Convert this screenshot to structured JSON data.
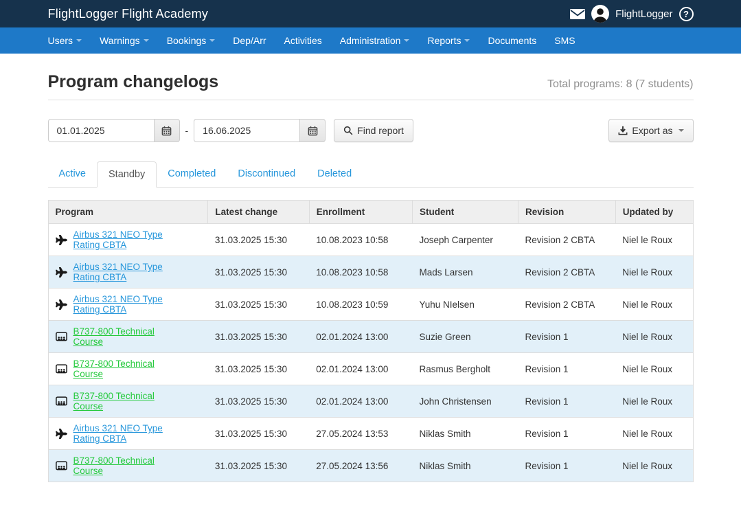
{
  "topbar": {
    "brand": "FlightLogger Flight Academy",
    "user_name": "FlightLogger",
    "help_label": "?"
  },
  "nav": {
    "items": [
      {
        "label": "Users",
        "caret": true
      },
      {
        "label": "Warnings",
        "caret": true
      },
      {
        "label": "Bookings",
        "caret": true
      },
      {
        "label": "Dep/Arr",
        "caret": false
      },
      {
        "label": "Activities",
        "caret": false
      },
      {
        "label": "Administration",
        "caret": true
      },
      {
        "label": "Reports",
        "caret": true
      },
      {
        "label": "Documents",
        "caret": false
      },
      {
        "label": "SMS",
        "caret": false
      }
    ]
  },
  "page": {
    "title": "Program changelogs",
    "total_summary": "Total programs: 8 (7 students)"
  },
  "filters": {
    "date_from": "01.01.2025",
    "date_to": "16.06.2025",
    "range_separator": "-",
    "find_button_label": "Find report",
    "export_button_label": "Export as"
  },
  "tabs": [
    {
      "label": "Active",
      "active": false
    },
    {
      "label": "Standby",
      "active": true
    },
    {
      "label": "Completed",
      "active": false
    },
    {
      "label": "Discontinued",
      "active": false
    },
    {
      "label": "Deleted",
      "active": false
    }
  ],
  "table": {
    "columns": [
      "Program",
      "Latest change",
      "Enrollment",
      "Student",
      "Revision",
      "Updated by"
    ],
    "rows": [
      {
        "program": "Airbus 321 NEO Type Rating CBTA",
        "type": "flight",
        "icon": "airplane-icon",
        "latest_change": "31.03.2025 15:30",
        "enrollment": "10.08.2023 10:58",
        "student": "Joseph Carpenter",
        "revision": "Revision 2 CBTA",
        "updated_by": "Niel le Roux"
      },
      {
        "program": "Airbus 321 NEO Type Rating CBTA",
        "type": "flight",
        "icon": "airplane-icon",
        "latest_change": "31.03.2025 15:30",
        "enrollment": "10.08.2023 10:58",
        "student": "Mads Larsen",
        "revision": "Revision 2 CBTA",
        "updated_by": "Niel le Roux"
      },
      {
        "program": "Airbus 321 NEO Type Rating CBTA",
        "type": "flight",
        "icon": "airplane-icon",
        "latest_change": "31.03.2025 15:30",
        "enrollment": "10.08.2023 10:59",
        "student": "Yuhu NIelsen",
        "revision": "Revision 2 CBTA",
        "updated_by": "Niel le Roux"
      },
      {
        "program": "B737-800 Technical Course",
        "type": "theory",
        "icon": "classroom-icon",
        "latest_change": "31.03.2025 15:30",
        "enrollment": "02.01.2024 13:00",
        "student": "Suzie Green",
        "revision": "Revision 1",
        "updated_by": "Niel le Roux"
      },
      {
        "program": "B737-800 Technical Course",
        "type": "theory",
        "icon": "classroom-icon",
        "latest_change": "31.03.2025 15:30",
        "enrollment": "02.01.2024 13:00",
        "student": "Rasmus Bergholt",
        "revision": "Revision 1",
        "updated_by": "Niel le Roux"
      },
      {
        "program": "B737-800 Technical Course",
        "type": "theory",
        "icon": "classroom-icon",
        "latest_change": "31.03.2025 15:30",
        "enrollment": "02.01.2024 13:00",
        "student": "John Christensen",
        "revision": "Revision 1",
        "updated_by": "Niel le Roux"
      },
      {
        "program": "Airbus 321 NEO Type Rating CBTA",
        "type": "flight",
        "icon": "airplane-icon",
        "latest_change": "31.03.2025 15:30",
        "enrollment": "27.05.2024 13:53",
        "student": "Niklas Smith",
        "revision": "Revision 1",
        "updated_by": "Niel le Roux"
      },
      {
        "program": "B737-800 Technical Course",
        "type": "theory",
        "icon": "classroom-icon",
        "latest_change": "31.03.2025 15:30",
        "enrollment": "27.05.2024 13:56",
        "student": "Niklas Smith",
        "revision": "Revision 1",
        "updated_by": "Niel le Roux"
      }
    ]
  },
  "colors": {
    "topbar_bg": "#16324c",
    "nav_bg": "#1e79c8",
    "link_blue": "#2596db",
    "link_green": "#22c93a",
    "row_alt_bg": "#e2f0f9",
    "table_header_bg": "#efefef",
    "border": "#dddddd",
    "muted_text": "#8e8e8e"
  }
}
